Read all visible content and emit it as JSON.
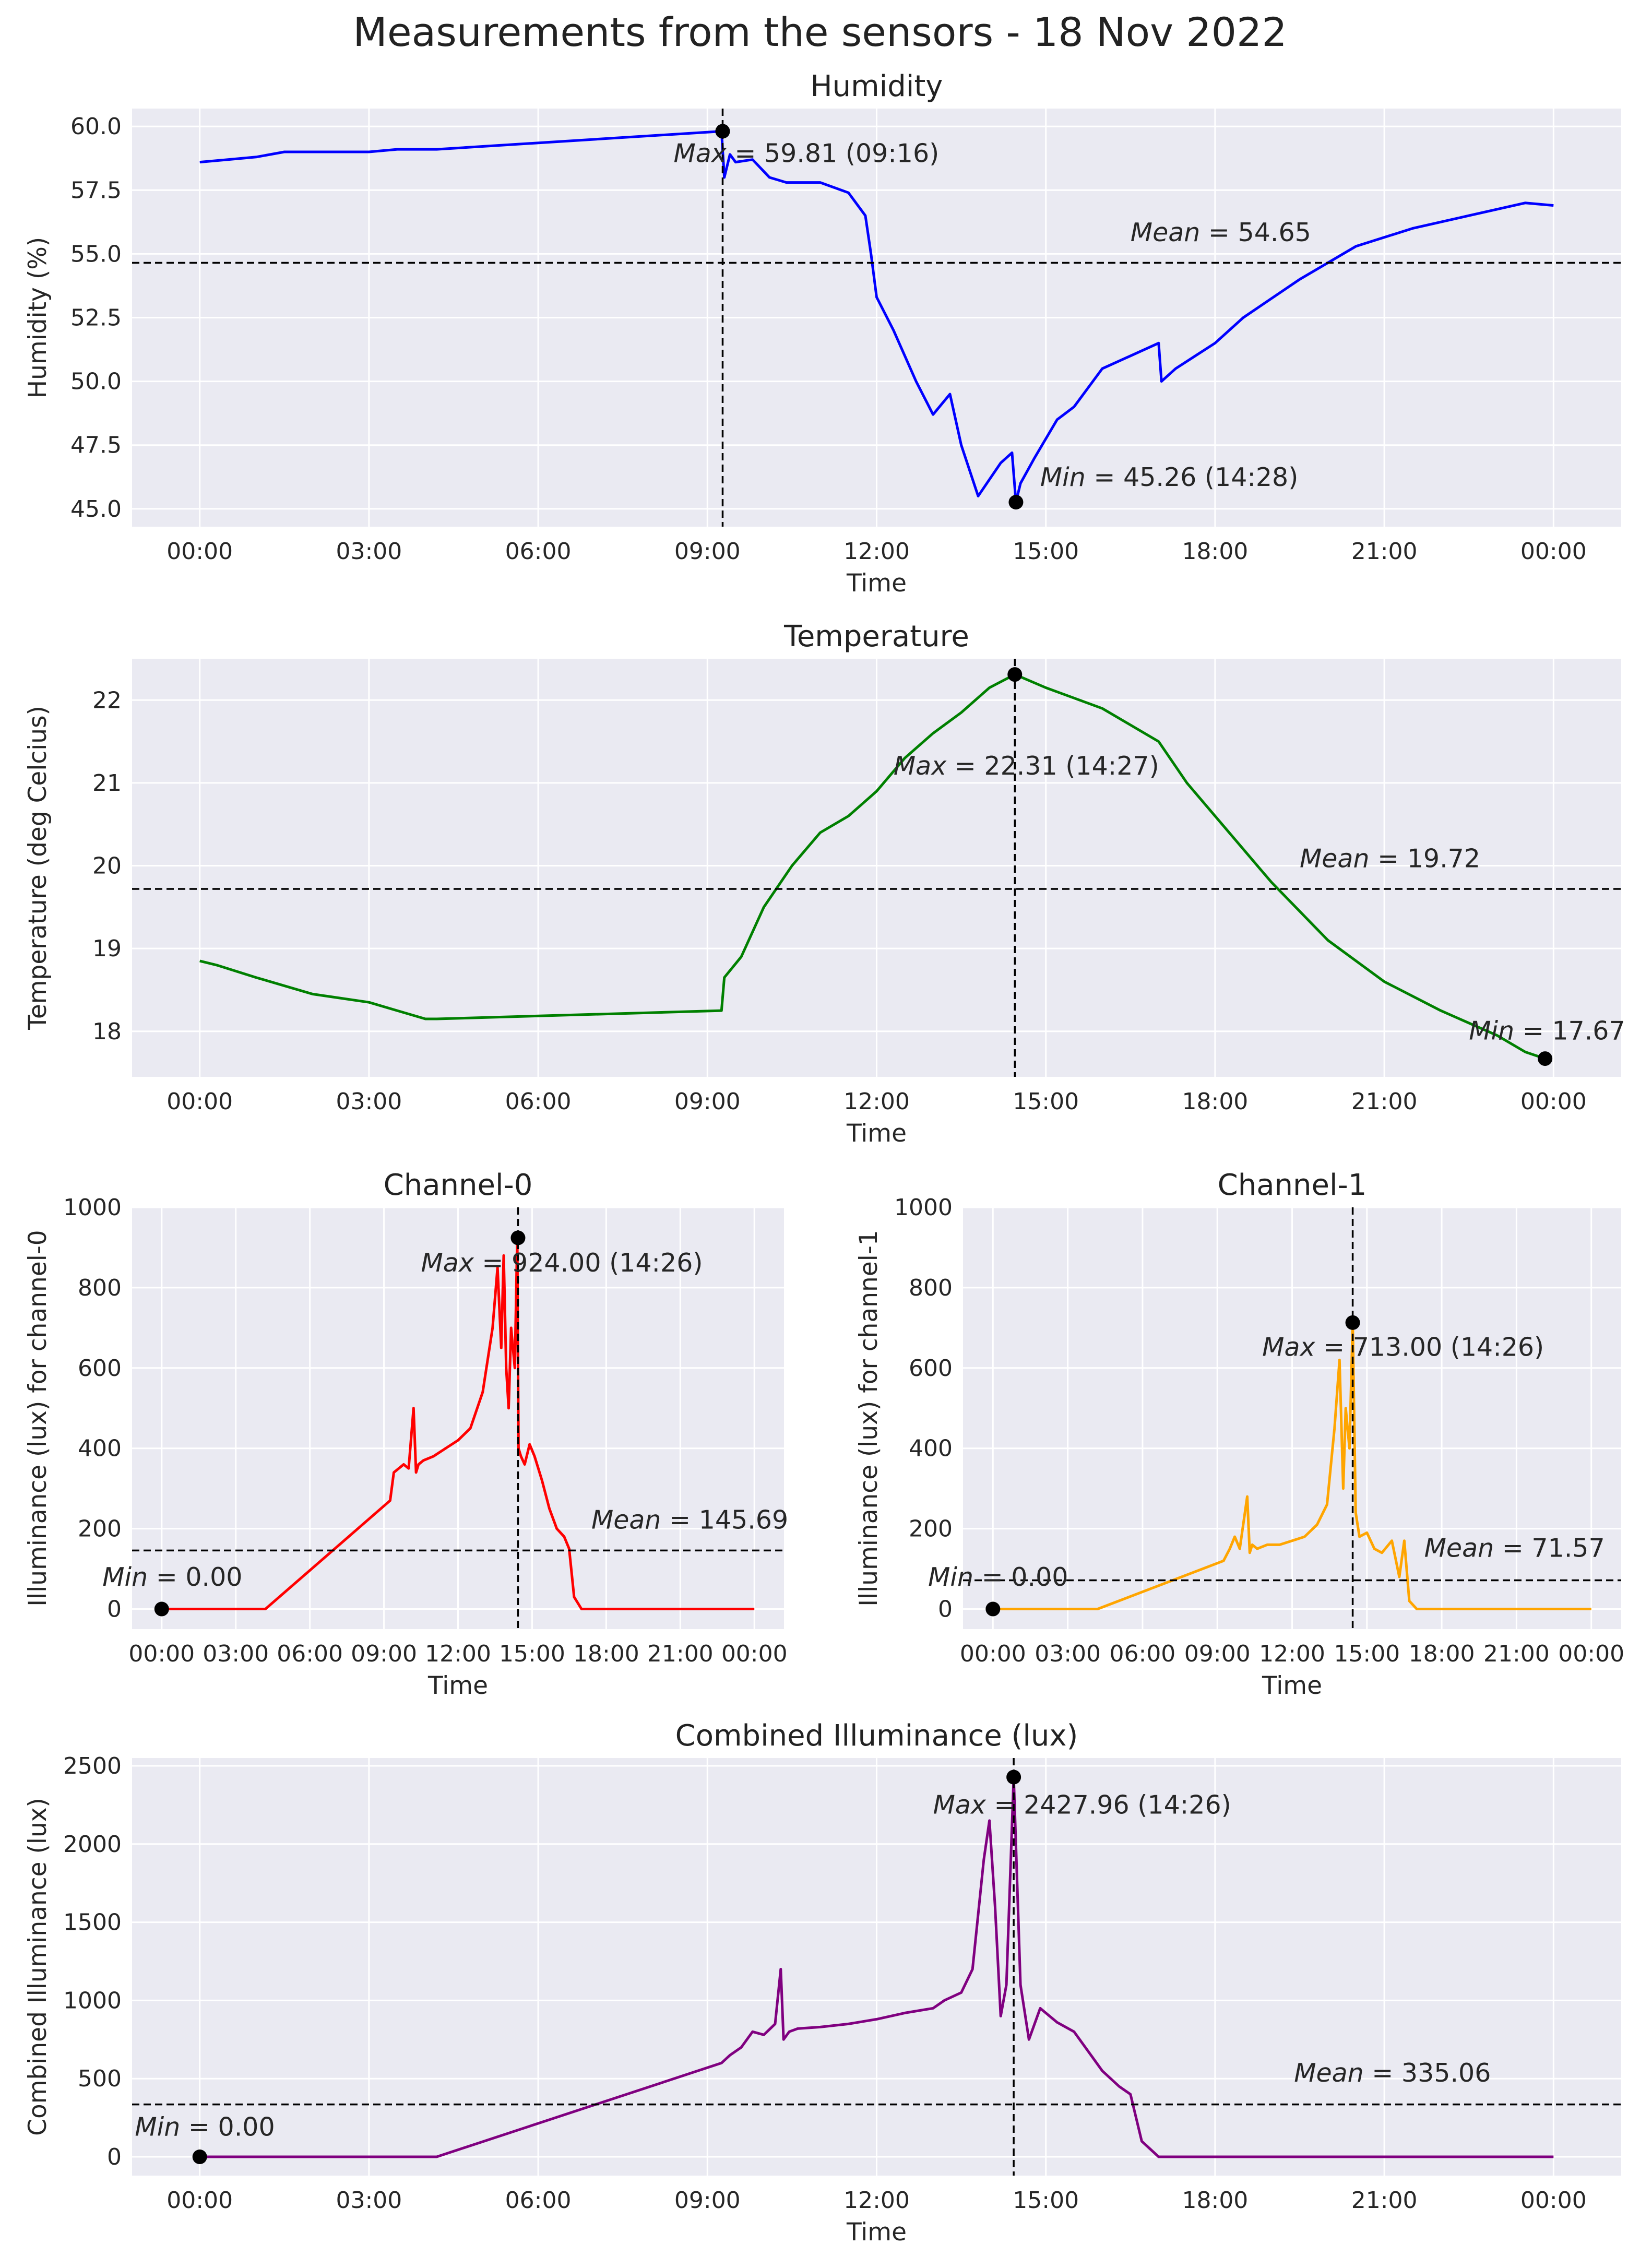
{
  "figure_title": "Measurements from the sensors - 18 Nov 2022",
  "colors": {
    "background": "#eaeaf2",
    "grid": "#ffffff",
    "humidity": "#0000ff",
    "temperature": "#008000",
    "channel0": "#ff0000",
    "channel1": "#ffa500",
    "combined": "#800080",
    "marker": "#000000",
    "reference_line": "#000000"
  },
  "chart_data": [
    {
      "id": "humidity",
      "type": "line",
      "title": "Humidity",
      "xlabel": "Time",
      "ylabel": "Humidity (%)",
      "x_unit": "hours since 00:00, 18 Nov 2022",
      "xlim": [
        -1.2,
        25.2
      ],
      "ylim": [
        44.3,
        60.7
      ],
      "x_tick_values": [
        0,
        3,
        6,
        9,
        12,
        15,
        18,
        21,
        24
      ],
      "x_tick_labels": [
        "00:00",
        "03:00",
        "06:00",
        "09:00",
        "12:00",
        "15:00",
        "18:00",
        "21:00",
        "00:00"
      ],
      "y_tick_values": [
        45.0,
        47.5,
        50.0,
        52.5,
        55.0,
        57.5,
        60.0
      ],
      "y_tick_labels": [
        "45.0",
        "47.5",
        "50.0",
        "52.5",
        "55.0",
        "57.5",
        "60.0"
      ],
      "series": [
        {
          "name": "Humidity",
          "color": "#0000ff",
          "x": [
            0.0,
            0.5,
            1.0,
            1.5,
            2.0,
            2.5,
            3.0,
            3.5,
            4.2,
            9.25,
            9.3,
            9.4,
            9.5,
            9.8,
            10.1,
            10.4,
            10.6,
            11.0,
            11.5,
            11.8,
            11.9,
            12.0,
            12.3,
            12.7,
            13.0,
            13.3,
            13.5,
            13.8,
            14.2,
            14.4,
            14.47,
            14.55,
            14.8,
            15.2,
            15.5,
            16.0,
            16.5,
            17.0,
            17.05,
            17.3,
            18.0,
            18.5,
            19.5,
            20.5,
            21.5,
            22.5,
            23.5,
            24.0
          ],
          "y": [
            58.6,
            58.7,
            58.8,
            59.0,
            59.0,
            59.0,
            59.0,
            59.1,
            59.1,
            59.81,
            58.0,
            58.9,
            58.6,
            58.7,
            58.0,
            57.8,
            57.8,
            57.8,
            57.4,
            56.5,
            55.0,
            53.3,
            52.0,
            50.0,
            48.7,
            49.5,
            47.5,
            45.5,
            46.8,
            47.2,
            45.26,
            46.0,
            47.0,
            48.5,
            49.0,
            50.5,
            51.0,
            51.5,
            50.0,
            50.5,
            51.5,
            52.5,
            54.0,
            55.3,
            56.0,
            56.5,
            57.0,
            56.9
          ]
        }
      ],
      "max": {
        "x": 9.27,
        "y": 59.81,
        "time": "09:16"
      },
      "min": {
        "x": 14.47,
        "y": 45.26,
        "time": "14:28"
      },
      "mean": 54.65,
      "annotations": {
        "max_text": "= 59.81 (09:16)",
        "max_italic": "Max",
        "min_text": "= 45.26 (14:28)",
        "min_italic": "Min",
        "mean_text": "= 54.65",
        "mean_italic": "Mean"
      },
      "annotation_values": {
        "max_label": [
          8.4,
          58.6
        ],
        "min_label": [
          14.9,
          45.9
        ],
        "mean_label": [
          16.5,
          55.5
        ]
      }
    },
    {
      "id": "temperature",
      "type": "line",
      "title": "Temperature",
      "xlabel": "Time",
      "ylabel": "Temperature (deg Celcius)",
      "x_unit": "hours since 00:00, 18 Nov 2022",
      "xlim": [
        -1.2,
        25.2
      ],
      "ylim": [
        17.45,
        22.5
      ],
      "x_tick_values": [
        0,
        3,
        6,
        9,
        12,
        15,
        18,
        21,
        24
      ],
      "x_tick_labels": [
        "00:00",
        "03:00",
        "06:00",
        "09:00",
        "12:00",
        "15:00",
        "18:00",
        "21:00",
        "00:00"
      ],
      "y_tick_values": [
        18,
        19,
        20,
        21,
        22
      ],
      "y_tick_labels": [
        "18",
        "19",
        "20",
        "21",
        "22"
      ],
      "series": [
        {
          "name": "Temperature",
          "color": "#008000",
          "x": [
            0.0,
            0.3,
            1.0,
            2.0,
            3.0,
            3.5,
            4.0,
            4.2,
            9.25,
            9.3,
            9.6,
            10.0,
            10.5,
            11.0,
            11.5,
            12.0,
            12.5,
            13.0,
            13.5,
            14.0,
            14.45,
            15.0,
            16.0,
            17.0,
            17.5,
            18.0,
            18.5,
            19.0,
            20.0,
            21.0,
            22.0,
            23.0,
            23.5,
            23.85
          ],
          "y": [
            18.85,
            18.8,
            18.65,
            18.45,
            18.35,
            18.25,
            18.15,
            18.15,
            18.25,
            18.65,
            18.9,
            19.5,
            20.0,
            20.4,
            20.6,
            20.9,
            21.3,
            21.6,
            21.85,
            22.15,
            22.31,
            22.15,
            21.9,
            21.5,
            21.0,
            20.6,
            20.2,
            19.8,
            19.1,
            18.6,
            18.25,
            17.95,
            17.75,
            17.67
          ]
        }
      ],
      "max": {
        "x": 14.45,
        "y": 22.31,
        "time": "14:27"
      },
      "min": {
        "x": 23.85,
        "y": 17.67
      },
      "mean": 19.72,
      "annotations": {
        "max_text": "= 22.31 (14:27)",
        "max_italic": "Max",
        "min_text": "= 17.67",
        "min_italic": "Min",
        "mean_text": "= 19.72",
        "mean_italic": "Mean"
      },
      "annotation_values": {
        "max_label": [
          12.3,
          21.1
        ],
        "min_label": [
          22.5,
          17.9
        ],
        "mean_label": [
          19.5,
          19.98
        ]
      }
    },
    {
      "id": "channel0",
      "type": "line",
      "title": "Channel-0",
      "xlabel": "Time",
      "ylabel": "Illuminance (lux) for channel-0",
      "x_unit": "hours since 00:00, 18 Nov 2022",
      "xlim": [
        -1.2,
        25.2
      ],
      "ylim": [
        -50,
        1000
      ],
      "x_tick_values": [
        0,
        3,
        6,
        9,
        12,
        15,
        18,
        21,
        24
      ],
      "x_tick_labels": [
        "00:00",
        "03:00",
        "06:00",
        "09:00",
        "12:00",
        "15:00",
        "18:00",
        "21:00",
        "00:00"
      ],
      "y_tick_values": [
        0,
        200,
        400,
        600,
        800,
        1000
      ],
      "y_tick_labels": [
        "0",
        "200",
        "400",
        "600",
        "800",
        "1000"
      ],
      "series": [
        {
          "name": "Channel-0",
          "color": "#ff0000",
          "x": [
            0.0,
            4.2,
            9.25,
            9.4,
            9.8,
            10.0,
            10.2,
            10.3,
            10.4,
            10.6,
            11.0,
            11.5,
            12.0,
            12.5,
            13.0,
            13.4,
            13.6,
            13.75,
            13.85,
            13.95,
            14.05,
            14.15,
            14.3,
            14.4,
            14.45,
            14.55,
            14.7,
            14.9,
            15.1,
            15.4,
            15.7,
            16.0,
            16.3,
            16.5,
            16.7,
            17.0,
            24.0
          ],
          "y": [
            0,
            0,
            270,
            340,
            360,
            350,
            500,
            340,
            360,
            370,
            380,
            400,
            420,
            450,
            540,
            700,
            850,
            650,
            880,
            600,
            500,
            700,
            600,
            924,
            400,
            380,
            360,
            410,
            380,
            320,
            250,
            200,
            180,
            150,
            30,
            0,
            0
          ]
        }
      ],
      "max": {
        "x": 14.43,
        "y": 924.0,
        "time": "14:26"
      },
      "min": {
        "x": 0.0,
        "y": 0.0
      },
      "mean": 145.69,
      "annotations": {
        "max_text": "= 924.00 (14:26)",
        "max_italic": "Max",
        "min_text": "= 0.00",
        "min_italic": "Min",
        "mean_text": "= 145.69",
        "mean_italic": "Mean"
      },
      "annotation_values": {
        "max_label": [
          10.5,
          840
        ],
        "min_label": [
          -2.4,
          58
        ],
        "mean_label": [
          17.4,
          200
        ]
      }
    },
    {
      "id": "channel1",
      "type": "line",
      "title": "Channel-1",
      "xlabel": "Time",
      "ylabel": "Illuminance (lux) for channel-1",
      "x_unit": "hours since 00:00, 18 Nov 2022",
      "xlim": [
        -1.2,
        25.2
      ],
      "ylim": [
        -50,
        1000
      ],
      "x_tick_values": [
        0,
        3,
        6,
        9,
        12,
        15,
        18,
        21,
        24
      ],
      "x_tick_labels": [
        "00:00",
        "03:00",
        "06:00",
        "09:00",
        "12:00",
        "15:00",
        "18:00",
        "21:00",
        "00:00"
      ],
      "y_tick_values": [
        0,
        200,
        400,
        600,
        800,
        1000
      ],
      "y_tick_labels": [
        "0",
        "200",
        "400",
        "600",
        "800",
        "1000"
      ],
      "series": [
        {
          "name": "Channel-1",
          "color": "#ffa500",
          "x": [
            0.0,
            4.2,
            9.25,
            9.5,
            9.7,
            9.9,
            10.2,
            10.3,
            10.4,
            10.6,
            11.0,
            11.5,
            12.0,
            12.5,
            13.0,
            13.4,
            13.7,
            13.9,
            14.05,
            14.15,
            14.3,
            14.43,
            14.55,
            14.7,
            15.0,
            15.3,
            15.6,
            16.0,
            16.3,
            16.5,
            16.7,
            17.0,
            24.0
          ],
          "y": [
            0,
            0,
            120,
            150,
            180,
            150,
            280,
            140,
            160,
            150,
            160,
            160,
            170,
            180,
            210,
            260,
            450,
            620,
            300,
            500,
            400,
            713,
            240,
            180,
            190,
            150,
            140,
            170,
            80,
            170,
            20,
            0,
            0
          ]
        }
      ],
      "max": {
        "x": 14.43,
        "y": 713.0,
        "time": "14:26"
      },
      "min": {
        "x": 0.0,
        "y": 0.0
      },
      "mean": 71.57,
      "annotations": {
        "max_text": "= 713.00 (14:26)",
        "max_italic": "Max",
        "min_text": "= 0.00",
        "min_italic": "Min",
        "mean_text": "= 71.57",
        "mean_italic": "Mean"
      },
      "annotation_values": {
        "max_label": [
          10.8,
          630
        ],
        "min_label": [
          -2.6,
          58
        ],
        "mean_label": [
          17.3,
          130
        ]
      }
    },
    {
      "id": "combined",
      "type": "line",
      "title": "Combined Illuminance (lux)",
      "xlabel": "Time",
      "ylabel": "Combined Illuminance (lux)",
      "x_unit": "hours since 00:00, 18 Nov 2022",
      "xlim": [
        -1.2,
        25.2
      ],
      "ylim": [
        -120,
        2550
      ],
      "x_tick_values": [
        0,
        3,
        6,
        9,
        12,
        15,
        18,
        21,
        24
      ],
      "x_tick_labels": [
        "00:00",
        "03:00",
        "06:00",
        "09:00",
        "12:00",
        "15:00",
        "18:00",
        "21:00",
        "00:00"
      ],
      "y_tick_values": [
        0,
        500,
        1000,
        1500,
        2000,
        2500
      ],
      "y_tick_labels": [
        "0",
        "500",
        "1000",
        "1500",
        "2000",
        "2500"
      ],
      "series": [
        {
          "name": "Combined Illuminance",
          "color": "#800080",
          "x": [
            0.0,
            4.2,
            9.25,
            9.4,
            9.6,
            9.8,
            10.0,
            10.2,
            10.3,
            10.35,
            10.45,
            10.6,
            11.0,
            11.5,
            12.0,
            12.5,
            13.0,
            13.2,
            13.5,
            13.7,
            13.9,
            14.0,
            14.1,
            14.2,
            14.3,
            14.43,
            14.55,
            14.7,
            14.9,
            15.2,
            15.5,
            15.8,
            16.0,
            16.3,
            16.5,
            16.7,
            17.0,
            24.0
          ],
          "y": [
            0,
            0,
            600,
            650,
            700,
            800,
            780,
            850,
            1200,
            750,
            800,
            820,
            830,
            850,
            880,
            920,
            950,
            1000,
            1050,
            1200,
            1900,
            2150,
            1600,
            900,
            1100,
            2428,
            1100,
            750,
            950,
            860,
            800,
            650,
            550,
            450,
            400,
            100,
            0,
            0
          ]
        }
      ],
      "max": {
        "x": 14.43,
        "y": 2427.96,
        "time": "14:26"
      },
      "min": {
        "x": 0.0,
        "y": 0.0
      },
      "mean": 335.06,
      "annotations": {
        "max_text": "= 2427.96 (14:26)",
        "max_italic": "Max",
        "min_text": "= 0.00",
        "min_italic": "Min",
        "mean_text": "= 335.06",
        "mean_italic": "Mean"
      },
      "annotation_values": {
        "max_label": [
          13.0,
          2195
        ],
        "min_label": [
          -1.15,
          135
        ],
        "mean_label": [
          19.4,
          480
        ]
      }
    }
  ]
}
